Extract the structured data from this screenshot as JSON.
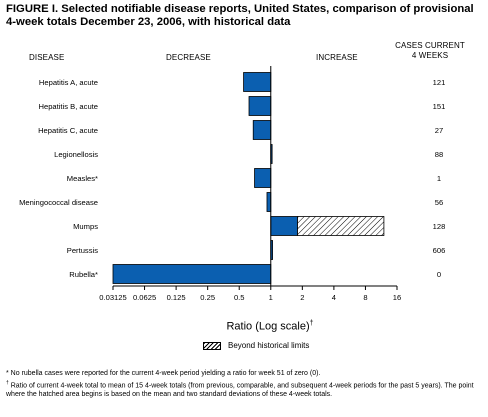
{
  "title": "FIGURE I. Selected notifiable disease reports, United States, comparison of provisional 4-week totals December 23, 2006, with historical data",
  "headers": {
    "disease": "DISEASE",
    "decrease": "DECREASE",
    "increase": "INCREASE",
    "cases_line1": "CASES CURRENT",
    "cases_line2": "4 WEEKS"
  },
  "legend": {
    "label": "Beyond historical limits"
  },
  "footnotes": {
    "star": "No rubella cases were reported for the current 4-week period yielding a ratio for week 51 of zero (0).",
    "dagger": "Ratio of current 4-week total to mean of 15 4-week totals (from previous, comparable, and subsequent 4-week periods for the past 5 years). The point where the hatched area begins is based on the mean and two standard deviations of these 4-week totals."
  },
  "colors": {
    "bar": "#0b5fb0",
    "bar_edge": "#000000",
    "hatch": "#000000"
  },
  "chart_data": {
    "type": "bar",
    "orientation": "horizontal",
    "scale": "log2",
    "xlabel": "Ratio (Log scale)",
    "xlabel_mark": "†",
    "xlim": [
      0.03125,
      16
    ],
    "ticks": [
      0.03125,
      0.0625,
      0.125,
      0.25,
      0.5,
      1,
      2,
      4,
      8,
      16
    ],
    "tick_labels": [
      "0.03125",
      "0.0625",
      "0.125",
      "0.25",
      "0.5",
      "1",
      "2",
      "4",
      "8",
      "16"
    ],
    "categories": [
      "Hepatitis A, acute",
      "Hepatitis B, acute",
      "Hepatitis C, acute",
      "Legionellosis",
      "Measles*",
      "Meningococcal disease",
      "Mumps",
      "Pertussis",
      "Rubella*"
    ],
    "values": [
      0.55,
      0.62,
      0.68,
      1.03,
      0.7,
      0.92,
      12.0,
      1.04,
      0.03125
    ],
    "beyond_limit_start": [
      null,
      null,
      null,
      null,
      null,
      null,
      1.8,
      null,
      null
    ],
    "cases_current_4_weeks": [
      "121",
      "151",
      "27",
      "88",
      "1",
      "56",
      "128",
      "606",
      "0"
    ]
  }
}
